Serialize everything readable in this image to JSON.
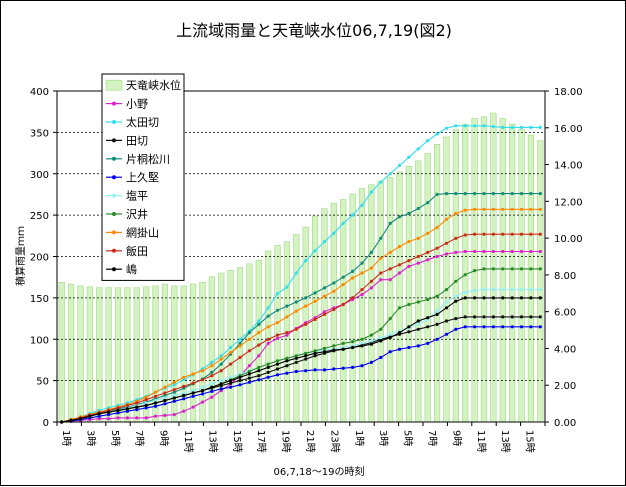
{
  "chart_data": {
    "type": "bar+line",
    "title": "上流域雨量と天竜峡水位06,7,19(図2)",
    "xlabel": "06,7,18～19の時刻",
    "ylabel": "積算雨量ｍｍ",
    "y_left_ticks": [
      "0",
      "50",
      "100",
      "150",
      "200",
      "250",
      "300",
      "350",
      "400"
    ],
    "y_right_ticks": [
      "0.00",
      "2.00",
      "4.00",
      "6.00",
      "8.00",
      "10.00",
      "12.00",
      "14.00",
      "16.00",
      "18.00"
    ],
    "ylim_left": [
      0,
      400
    ],
    "ylim_right": [
      0,
      18
    ],
    "x_tick_labels": [
      "1時",
      "3時",
      "5時",
      "7時",
      "9時",
      "11時",
      "13時",
      "15時",
      "17時",
      "19時",
      "21時",
      "23時",
      "1時",
      "3時",
      "5時",
      "7時",
      "9時",
      "11時",
      "13時",
      "15時"
    ],
    "grid": "dotted horizontal at left-axis ticks",
    "legend_position": "top-left inside plot",
    "colors": {
      "bar_fill": "#d4f3c0",
      "bar_stroke": "#9fd987",
      "小野": "#dd22cc",
      "太田切": "#33ddee",
      "田切": "#111111",
      "片桐松川": "#138a7a",
      "上久堅": "#0000ee",
      "塩平": "#99f0f4",
      "沢井": "#2a8a2a",
      "網掛山": "#ff8800",
      "飯田": "#cc2a1a",
      "嶋": "#000000"
    },
    "bar_series": {
      "name": "天竜峡水位",
      "axis": "right",
      "values": [
        7.6,
        7.5,
        7.4,
        7.35,
        7.3,
        7.3,
        7.3,
        7.3,
        7.3,
        7.35,
        7.4,
        7.5,
        7.4,
        7.4,
        7.5,
        7.6,
        7.9,
        8.1,
        8.25,
        8.4,
        8.6,
        8.8,
        9.3,
        9.6,
        9.8,
        10.2,
        10.6,
        11.2,
        11.6,
        11.9,
        12.1,
        12.4,
        12.7,
        12.9,
        13.1,
        13.3,
        13.6,
        13.9,
        14.2,
        14.6,
        15.1,
        15.5,
        15.9,
        16.2,
        16.5,
        16.6,
        16.8,
        16.5,
        16.2,
        15.9,
        15.6,
        15.3
      ]
    },
    "series": [
      {
        "name": "小野",
        "values": [
          0,
          1,
          2,
          3,
          4,
          4,
          5,
          5,
          5,
          5,
          7,
          8,
          9,
          13,
          18,
          24,
          30,
          38,
          46,
          56,
          68,
          80,
          95,
          101,
          105,
          113,
          120,
          126,
          133,
          138,
          142,
          148,
          154,
          162,
          172,
          172,
          180,
          188,
          192,
          196,
          200,
          203,
          205,
          206,
          206,
          206,
          206,
          206,
          206,
          206,
          206,
          206
        ]
      },
      {
        "name": "太田切",
        "values": [
          0,
          3,
          6,
          10,
          14,
          17,
          20,
          23,
          27,
          31,
          36,
          41,
          45,
          51,
          57,
          64,
          72,
          80,
          90,
          100,
          110,
          122,
          138,
          155,
          163,
          180,
          195,
          207,
          218,
          228,
          240,
          250,
          262,
          278,
          290,
          300,
          310,
          320,
          330,
          340,
          348,
          355,
          358,
          358,
          358,
          358,
          357,
          356,
          356,
          356,
          356,
          356
        ]
      },
      {
        "name": "田切",
        "values": [
          0,
          2,
          4,
          7,
          10,
          12,
          14,
          16,
          18,
          20,
          23,
          26,
          29,
          32,
          35,
          38,
          41,
          44,
          47,
          50,
          53,
          56,
          60,
          64,
          68,
          72,
          76,
          80,
          83,
          86,
          88,
          90,
          93,
          96,
          100,
          103,
          106,
          109,
          112,
          115,
          118,
          122,
          125,
          127,
          127,
          127,
          127,
          127,
          127,
          127,
          127,
          127
        ]
      },
      {
        "name": "片桐松川",
        "values": [
          0,
          3,
          6,
          9,
          12,
          14,
          16,
          18,
          21,
          24,
          28,
          32,
          36,
          41,
          46,
          52,
          60,
          70,
          82,
          95,
          108,
          118,
          128,
          135,
          140,
          145,
          150,
          156,
          162,
          168,
          175,
          182,
          192,
          205,
          222,
          240,
          248,
          252,
          258,
          265,
          275,
          276,
          276,
          276,
          276,
          276,
          276,
          276,
          276,
          276,
          276,
          276
        ]
      },
      {
        "name": "上久堅",
        "values": [
          0,
          1,
          3,
          5,
          7,
          9,
          11,
          13,
          15,
          17,
          19,
          22,
          25,
          28,
          31,
          34,
          37,
          40,
          42,
          45,
          48,
          51,
          54,
          57,
          59,
          61,
          62,
          63,
          63,
          64,
          65,
          66,
          68,
          72,
          78,
          85,
          88,
          90,
          92,
          95,
          100,
          106,
          112,
          115,
          115,
          115,
          115,
          115,
          115,
          115,
          115,
          115
        ]
      },
      {
        "name": "塩平",
        "values": [
          0,
          2,
          4,
          7,
          10,
          12,
          14,
          17,
          20,
          23,
          26,
          29,
          32,
          35,
          38,
          42,
          46,
          50,
          54,
          58,
          62,
          66,
          70,
          74,
          77,
          80,
          83,
          85,
          87,
          88,
          90,
          92,
          95,
          98,
          102,
          106,
          110,
          114,
          118,
          124,
          134,
          145,
          152,
          157,
          159,
          160,
          160,
          160,
          160,
          160,
          160,
          160
        ]
      },
      {
        "name": "沢井",
        "values": [
          0,
          2,
          4,
          7,
          10,
          12,
          14,
          16,
          18,
          20,
          23,
          26,
          29,
          32,
          35,
          38,
          42,
          46,
          51,
          56,
          61,
          66,
          70,
          74,
          77,
          80,
          83,
          86,
          89,
          92,
          95,
          97,
          100,
          105,
          112,
          125,
          138,
          142,
          145,
          148,
          152,
          160,
          170,
          178,
          183,
          185,
          185,
          185,
          185,
          185,
          185,
          185
        ]
      },
      {
        "name": "網掛山",
        "values": [
          0,
          3,
          6,
          9,
          12,
          15,
          18,
          21,
          25,
          30,
          36,
          42,
          48,
          54,
          58,
          62,
          68,
          76,
          84,
          92,
          100,
          108,
          115,
          120,
          127,
          134,
          140,
          146,
          152,
          158,
          166,
          174,
          180,
          186,
          198,
          205,
          212,
          218,
          222,
          228,
          235,
          245,
          252,
          256,
          257,
          257,
          257,
          257,
          257,
          257,
          257,
          257
        ]
      },
      {
        "name": "飯田",
        "values": [
          0,
          2,
          5,
          8,
          11,
          14,
          17,
          20,
          23,
          27,
          31,
          35,
          39,
          43,
          47,
          51,
          56,
          62,
          70,
          78,
          86,
          93,
          100,
          105,
          108,
          112,
          118,
          124,
          130,
          136,
          142,
          150,
          160,
          170,
          180,
          185,
          190,
          195,
          200,
          205,
          210,
          216,
          222,
          226,
          227,
          227,
          227,
          227,
          227,
          227,
          227,
          227
        ]
      },
      {
        "name": "嶋",
        "values": [
          0,
          2,
          4,
          7,
          10,
          12,
          14,
          16,
          18,
          20,
          23,
          26,
          29,
          32,
          35,
          38,
          42,
          46,
          50,
          54,
          58,
          62,
          66,
          70,
          74,
          77,
          80,
          83,
          85,
          87,
          88,
          90,
          92,
          94,
          98,
          102,
          108,
          115,
          122,
          126,
          130,
          138,
          146,
          150,
          150,
          150,
          150,
          150,
          150,
          150,
          150,
          150
        ]
      }
    ]
  }
}
